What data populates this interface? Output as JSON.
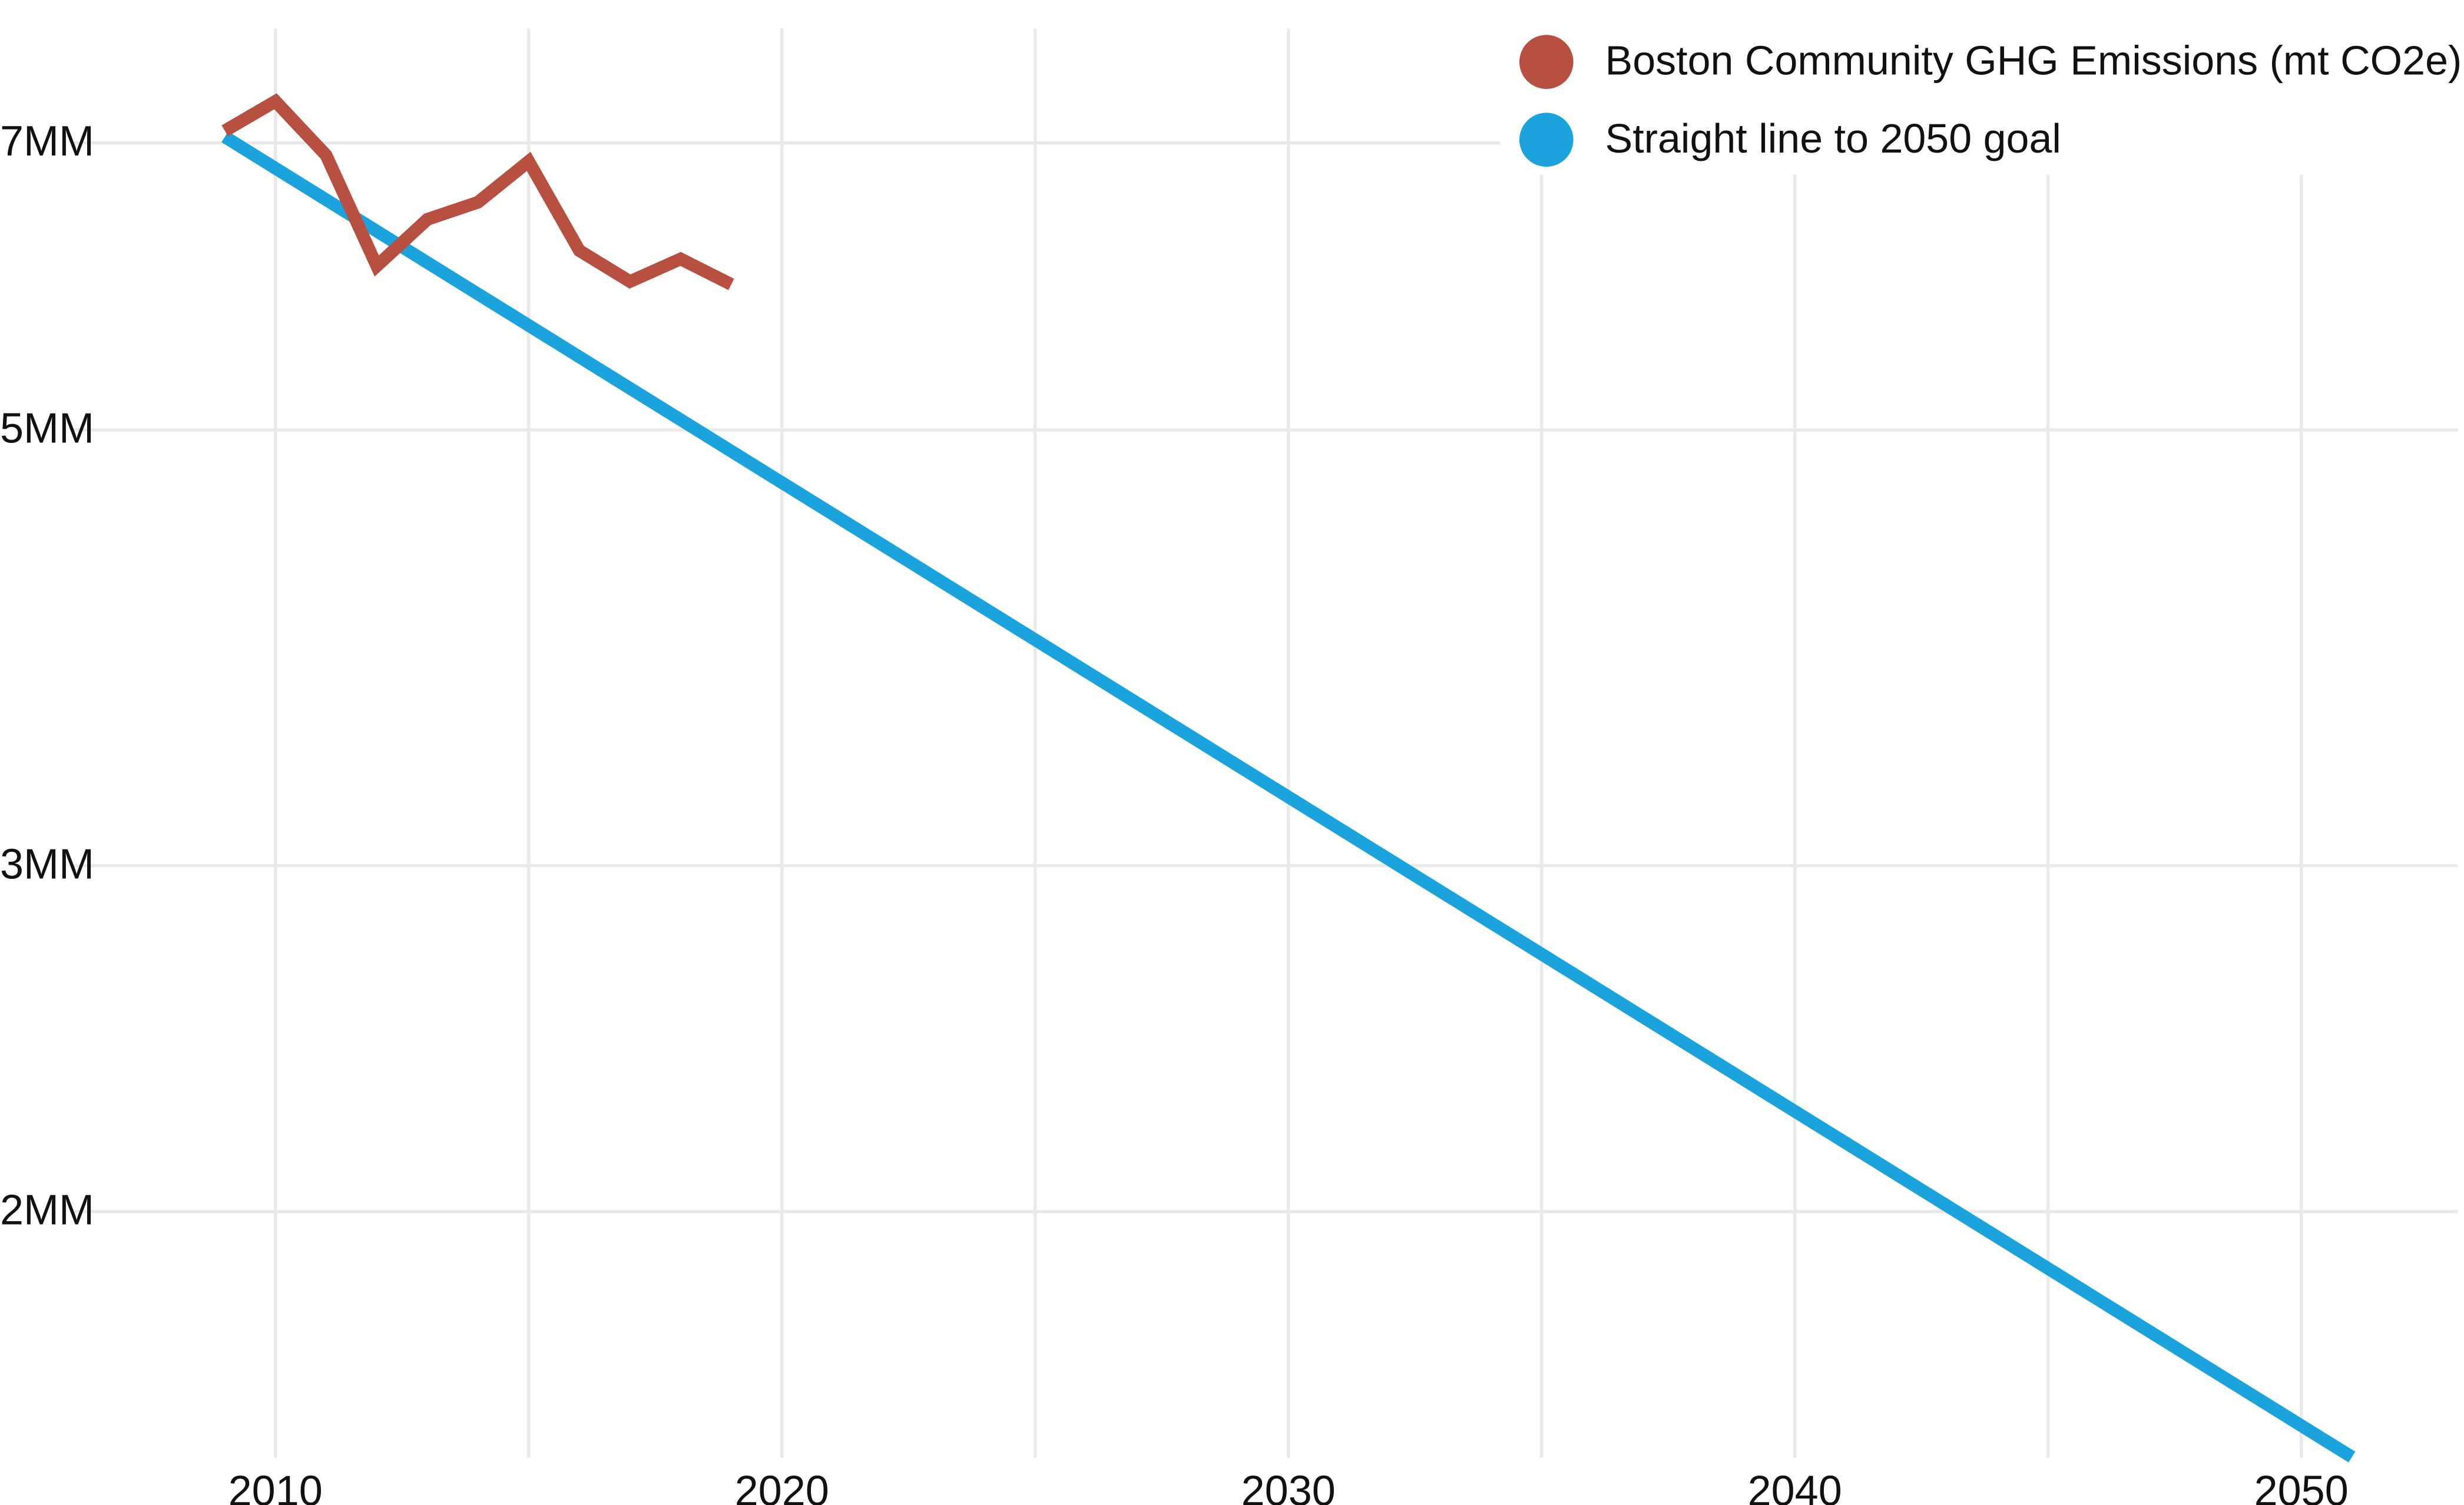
{
  "chart_data": {
    "type": "line",
    "title": "",
    "xlabel": "",
    "ylabel": "",
    "y_scale": "log",
    "xlim": [
      2008.0,
      2053.0
    ],
    "ylim": [
      1400000,
      8000000
    ],
    "x_ticks": [
      2010,
      2020,
      2030,
      2040,
      2050
    ],
    "x_tick_labels": [
      "2010",
      "2020",
      "2030",
      "2040",
      "2050"
    ],
    "x_minor_gridlines": [
      2015,
      2025,
      2035,
      2045
    ],
    "y_ticks": [
      2000000,
      3000000,
      5000000,
      7000000
    ],
    "y_tick_labels": [
      "2MM",
      "3MM",
      "5MM",
      "7MM"
    ],
    "grid": true,
    "legend_position": "top-right",
    "series": [
      {
        "name": "Boston Community GHG Emissions (mt CO2e)",
        "color": "#b85042",
        "x": [
          2009,
          2010,
          2011,
          2012,
          2013,
          2014,
          2015,
          2016,
          2017,
          2018,
          2019
        ],
        "y": [
          7100000,
          7350000,
          6900000,
          6060000,
          6400000,
          6530000,
          6850000,
          6170000,
          5950000,
          6110000,
          5930000
        ]
      },
      {
        "name": "Straight line to 2050 goal",
        "color": "#1aa3dc",
        "x": [
          2009,
          2051
        ],
        "y": [
          7050000,
          1500000
        ]
      }
    ]
  }
}
